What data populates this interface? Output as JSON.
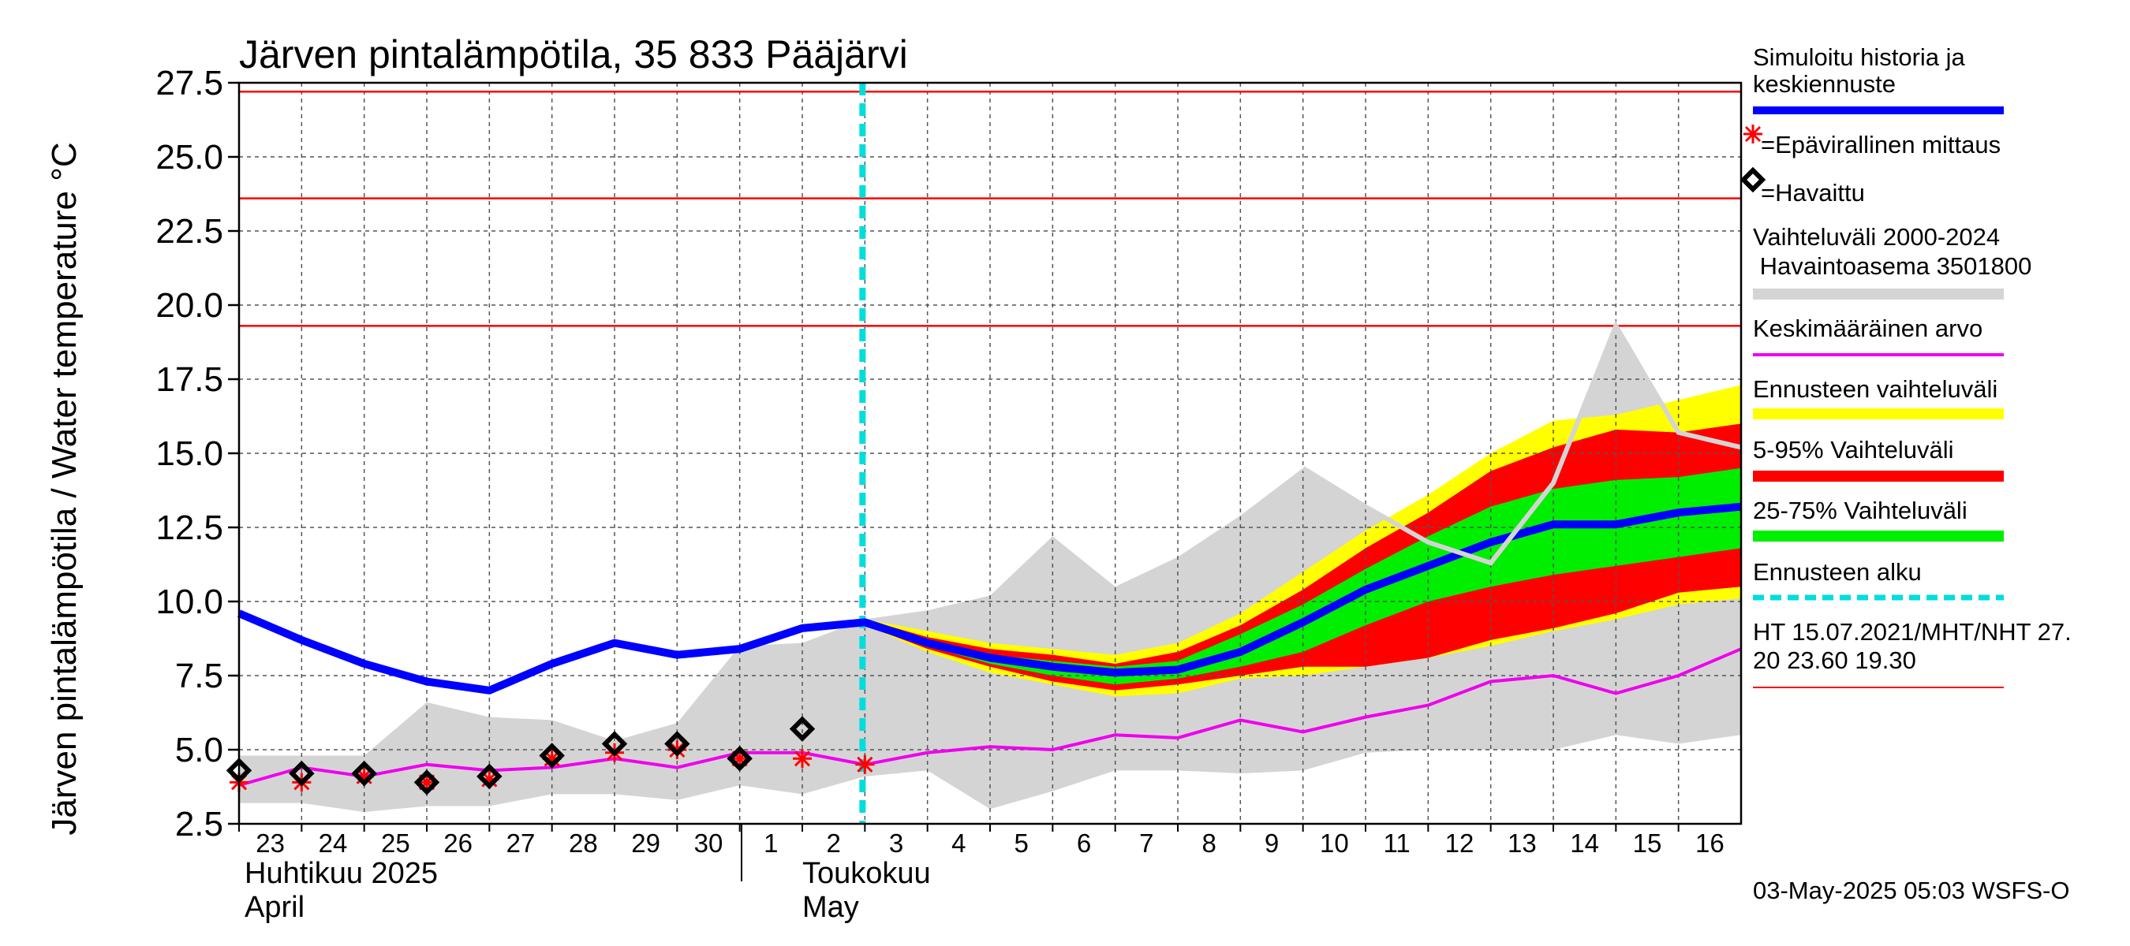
{
  "chart_data": {
    "type": "line",
    "title": "Järven pintalämpötila, 35 833 Pääjärvi",
    "ylabel": "Järven pintalämpötila / Water temperature °C",
    "ylim": [
      2.5,
      27.5
    ],
    "yticks": [
      "2.5",
      "5.0",
      "7.5",
      "10.0",
      "12.5",
      "15.0",
      "17.5",
      "20.0",
      "22.5",
      "25.0",
      "27.5"
    ],
    "x_day_labels": [
      "23",
      "24",
      "25",
      "26",
      "27",
      "28",
      "29",
      "30",
      "1",
      "2",
      "3",
      "4",
      "5",
      "6",
      "7",
      "8",
      "9",
      "10",
      "11",
      "12",
      "13",
      "14",
      "15",
      "16"
    ],
    "months": [
      {
        "fi": "Huhtikuu  2025",
        "en": "April"
      },
      {
        "fi": "Toukokuu",
        "en": "May"
      }
    ],
    "x_dates": [
      "2025-04-23",
      "2025-04-24",
      "2025-04-25",
      "2025-04-26",
      "2025-04-27",
      "2025-04-28",
      "2025-04-29",
      "2025-04-30",
      "2025-05-01",
      "2025-05-02",
      "2025-05-03",
      "2025-05-04",
      "2025-05-05",
      "2025-05-06",
      "2025-05-07",
      "2025-05-08",
      "2025-05-09",
      "2025-05-10",
      "2025-05-11",
      "2025-05-12",
      "2025-05-13",
      "2025-05-14",
      "2025-05-15",
      "2025-05-16",
      "2025-05-17"
    ],
    "forecast_start": "2025-05-03",
    "reference_lines": [
      27.2,
      23.6,
      19.3
    ],
    "series": [
      {
        "name": "Simuloitu historia ja keskiennuste",
        "color": "#0000ff",
        "x": [
          0,
          1,
          2,
          3,
          4,
          5,
          6,
          7,
          8,
          9,
          10,
          11,
          12,
          13,
          14,
          15,
          16,
          17,
          18,
          19,
          20,
          21,
          22,
          23,
          24
        ],
        "y": [
          9.6,
          8.7,
          7.9,
          7.3,
          7.0,
          7.9,
          8.6,
          8.2,
          8.4,
          9.1,
          9.3,
          8.6,
          8.1,
          7.8,
          7.6,
          7.7,
          8.3,
          9.3,
          10.4,
          11.2,
          12.0,
          12.6,
          12.6,
          13.0,
          13.2
        ]
      },
      {
        "name": "Keskimääräinen arvo",
        "color": "#ee00ee",
        "x": [
          0,
          1,
          2,
          3,
          4,
          5,
          6,
          7,
          8,
          9,
          10,
          11,
          12,
          13,
          14,
          15,
          16,
          17,
          18,
          19,
          20,
          21,
          22,
          23,
          24
        ],
        "y": [
          3.8,
          4.4,
          4.1,
          4.5,
          4.3,
          4.4,
          4.7,
          4.4,
          4.9,
          4.9,
          4.5,
          4.9,
          5.1,
          5.0,
          5.5,
          5.4,
          6.0,
          5.6,
          6.1,
          6.5,
          7.3,
          7.5,
          6.9,
          7.5,
          8.4
        ]
      },
      {
        "name": "Vaihteluväli 2000-2024 Havaintoasema 3501800",
        "color": "#d4d4d4",
        "x": [
          0,
          1,
          2,
          3,
          4,
          5,
          6,
          7,
          8,
          9,
          10,
          11,
          12,
          13,
          14,
          15,
          16,
          17,
          18,
          19,
          20,
          21,
          22,
          23,
          24
        ],
        "low": [
          3.2,
          3.2,
          2.9,
          3.1,
          3.1,
          3.5,
          3.5,
          3.3,
          3.8,
          3.5,
          4.1,
          4.3,
          3.0,
          3.6,
          4.3,
          4.3,
          4.2,
          4.3,
          4.9,
          5.0,
          5.0,
          5.0,
          5.5,
          5.2,
          5.5
        ],
        "high": [
          4.8,
          4.8,
          4.8,
          6.6,
          6.1,
          6.0,
          5.3,
          5.9,
          8.5,
          8.6,
          9.4,
          9.7,
          10.2,
          12.2,
          10.5,
          11.5,
          12.9,
          14.5,
          13.2,
          12.0,
          11.3,
          14.0,
          19.3,
          15.7,
          15.2
        ]
      },
      {
        "name": "Ennusteen vaihteluväli",
        "color": "#ffff00",
        "x": [
          10,
          11,
          12,
          13,
          14,
          15,
          16,
          17,
          18,
          19,
          20,
          21,
          22,
          23,
          24
        ],
        "low": [
          9.2,
          8.3,
          7.6,
          7.2,
          6.8,
          6.9,
          7.4,
          7.5,
          7.8,
          8.1,
          8.5,
          9.0,
          9.4,
          9.9,
          10.1
        ],
        "high": [
          9.4,
          9.0,
          8.6,
          8.4,
          8.2,
          8.6,
          9.6,
          11.0,
          12.4,
          13.6,
          15.0,
          16.1,
          16.3,
          16.8,
          17.3
        ]
      },
      {
        "name": "5-95% Vaihteluväli",
        "color": "#ff0000",
        "x": [
          10,
          11,
          12,
          13,
          14,
          15,
          16,
          17,
          18,
          19,
          20,
          21,
          22,
          23,
          24
        ],
        "low": [
          9.2,
          8.4,
          7.8,
          7.3,
          7.0,
          7.2,
          7.5,
          7.8,
          7.8,
          8.1,
          8.7,
          9.1,
          9.6,
          10.3,
          10.5
        ],
        "high": [
          9.4,
          8.8,
          8.4,
          8.2,
          7.9,
          8.3,
          9.2,
          10.4,
          11.8,
          13.0,
          14.4,
          15.2,
          15.8,
          15.7,
          16.0
        ]
      },
      {
        "name": "25-75% Vaihteluväli",
        "color": "#00ee00",
        "x": [
          10,
          11,
          12,
          13,
          14,
          15,
          16,
          17,
          18,
          19,
          20,
          21,
          22,
          23,
          24
        ],
        "low": [
          9.2,
          8.5,
          7.9,
          7.5,
          7.2,
          7.4,
          7.8,
          8.3,
          9.2,
          10.0,
          10.5,
          10.9,
          11.2,
          11.5,
          11.8
        ],
        "high": [
          9.3,
          8.7,
          8.2,
          8.0,
          7.8,
          8.0,
          8.9,
          9.9,
          11.1,
          12.2,
          13.2,
          13.8,
          14.1,
          14.2,
          14.5
        ]
      }
    ],
    "epavirallinen_mittaus": {
      "x": [
        0,
        1,
        2,
        3,
        4,
        5,
        6,
        7,
        8,
        9,
        10
      ],
      "y": [
        3.9,
        3.9,
        4.1,
        3.9,
        4.0,
        4.7,
        4.9,
        5.0,
        4.7,
        4.7,
        4.5
      ]
    },
    "havaittu": {
      "x": [
        0,
        1,
        2,
        3,
        4,
        5,
        6,
        7,
        8,
        9
      ],
      "y": [
        4.3,
        4.2,
        4.2,
        3.9,
        4.1,
        4.8,
        5.2,
        5.2,
        4.7,
        5.7
      ]
    }
  },
  "legend": {
    "sim_line1": "Simuloitu historia ja",
    "sim_line2": "keskiennuste",
    "epav": "=Epävirallinen mittaus",
    "havaittu": "=Havaittu",
    "range_line1": "Vaihteluväli 2000-2024",
    "range_line2": " Havaintoasema 3501800",
    "mean": "Keskimääräinen arvo",
    "fc_range": "Ennusteen vaihteluväli",
    "p5_95": "5-95% Vaihteluväli",
    "p25_75": "25-75% Vaihteluväli",
    "fc_start": "Ennusteen alku",
    "ht_line1": "HT 15.07.2021/MHT/NHT 27.",
    "ht_line2": "20 23.60 19.30"
  },
  "footer": "03-May-2025 05:03 WSFS-O",
  "colors": {
    "blue": "#0000ff",
    "magenta": "#ee00ee",
    "grey": "#d4d4d4",
    "yellow": "#ffff00",
    "red": "#ff0000",
    "green": "#00ee00",
    "cyan": "#00dddd",
    "refline": "#ff0000"
  }
}
